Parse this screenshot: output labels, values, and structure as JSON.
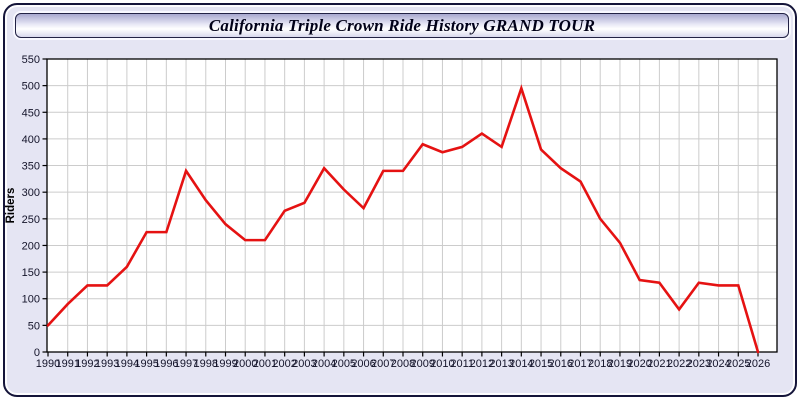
{
  "window": {
    "title": "California Triple Crown Ride History GRAND TOUR"
  },
  "colors": {
    "panel_bg": "#e5e5f3",
    "window_border": "#15153a",
    "line": "#e51212",
    "grid": "#cccccc",
    "frame": "#000000",
    "tick_text": "#14142a",
    "plot_bg": "#ffffff"
  },
  "chart_data": {
    "type": "line",
    "title": "California Triple Crown Ride History GRAND TOUR",
    "xlabel": "",
    "ylabel": "Riders",
    "grid": true,
    "legend": "none",
    "ylim": [
      0,
      550
    ],
    "ytick_step": 50,
    "x": [
      "1990",
      "1991",
      "1992",
      "1993",
      "1994",
      "1995",
      "1996",
      "1997",
      "1998",
      "1999",
      "2000",
      "2001",
      "2002",
      "2003",
      "2004",
      "2005",
      "2006",
      "2007",
      "2008",
      "2009",
      "2010",
      "2011",
      "2012",
      "2013",
      "2014",
      "2015",
      "2016",
      "2017",
      "2018",
      "2019",
      "2020",
      "2021",
      "2022",
      "2023",
      "2024",
      "2025",
      "2026"
    ],
    "series": [
      {
        "name": "Riders",
        "values": [
          50,
          90,
          125,
          125,
          160,
          225,
          225,
          340,
          285,
          240,
          210,
          210,
          265,
          280,
          345,
          305,
          270,
          340,
          340,
          390,
          375,
          385,
          410,
          385,
          495,
          380,
          345,
          320,
          250,
          205,
          135,
          130,
          80,
          130,
          125,
          125,
          0
        ]
      }
    ]
  }
}
